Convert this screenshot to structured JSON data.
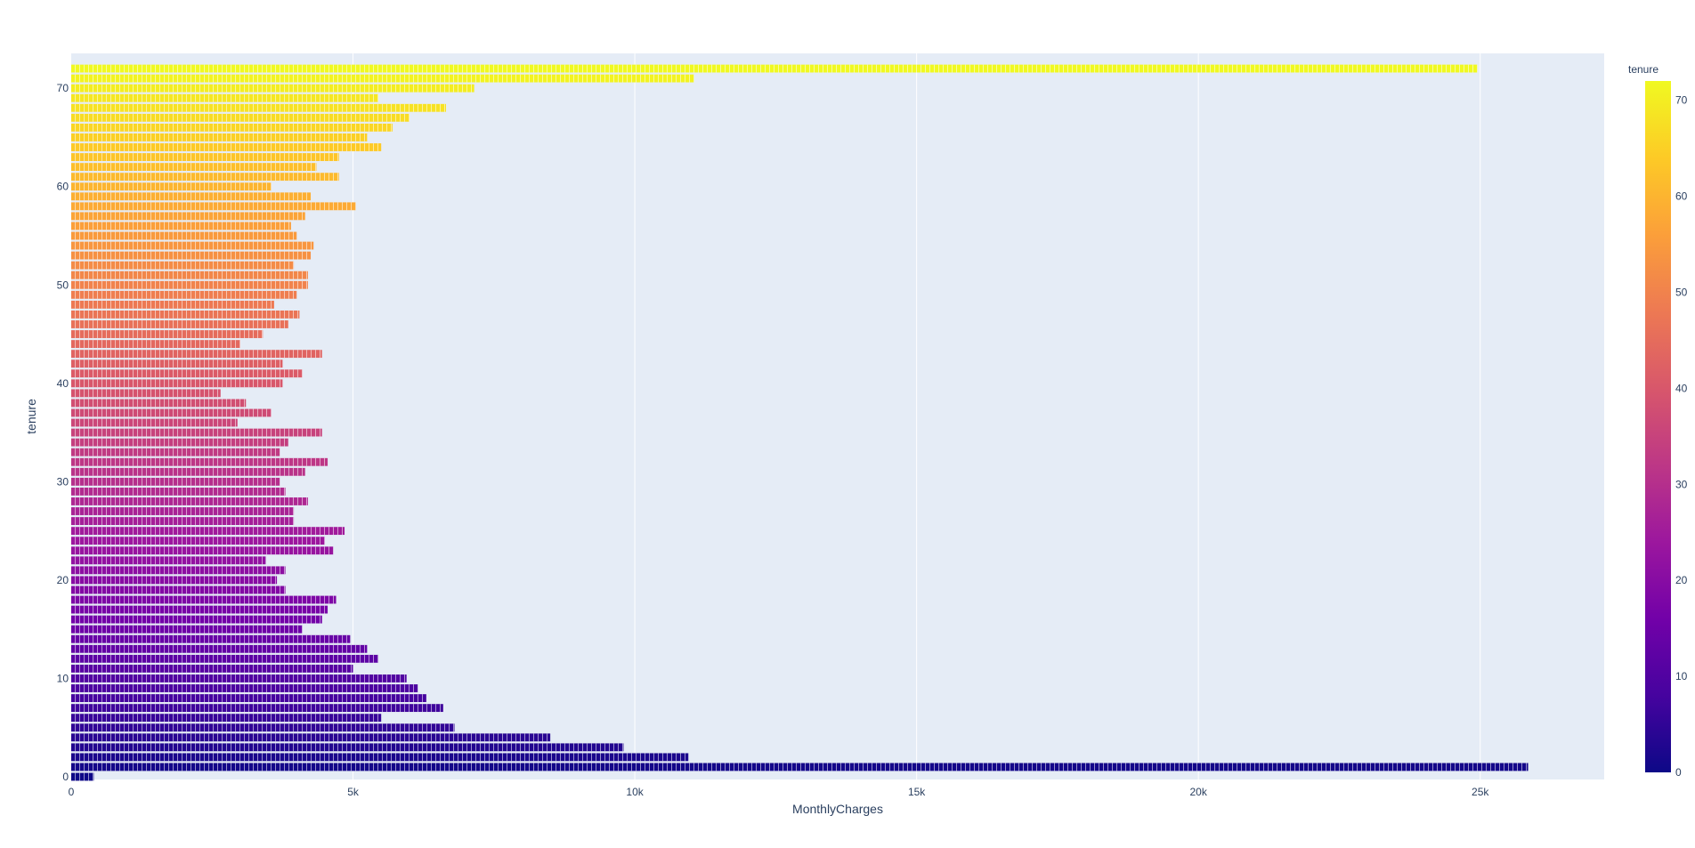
{
  "chart_data": {
    "type": "bar",
    "orientation": "horizontal",
    "barmode": "stacked",
    "xlabel": "MonthlyCharges",
    "ylabel": "tenure",
    "xlim": [
      0,
      27200
    ],
    "ylim": [
      0,
      73
    ],
    "x_ticks": [
      {
        "value": 0,
        "label": "0"
      },
      {
        "value": 5000,
        "label": "5k"
      },
      {
        "value": 10000,
        "label": "10k"
      },
      {
        "value": 15000,
        "label": "15k"
      },
      {
        "value": 20000,
        "label": "20k"
      },
      {
        "value": 25000,
        "label": "25k"
      }
    ],
    "y_ticks": [
      {
        "value": 0,
        "label": "0"
      },
      {
        "value": 10,
        "label": "10"
      },
      {
        "value": 20,
        "label": "20"
      },
      {
        "value": 30,
        "label": "30"
      },
      {
        "value": 40,
        "label": "40"
      },
      {
        "value": 50,
        "label": "50"
      },
      {
        "value": 60,
        "label": "60"
      },
      {
        "value": 70,
        "label": "70"
      }
    ],
    "grid": true,
    "colorbar": {
      "title": "tenure",
      "min": 0,
      "max": 72,
      "ticks": [
        {
          "value": 0,
          "label": "0"
        },
        {
          "value": 10,
          "label": "10"
        },
        {
          "value": 20,
          "label": "20"
        },
        {
          "value": 30,
          "label": "30"
        },
        {
          "value": 40,
          "label": "40"
        },
        {
          "value": 50,
          "label": "50"
        },
        {
          "value": 60,
          "label": "60"
        },
        {
          "value": 70,
          "label": "70"
        }
      ],
      "colorscale": [
        "#0d0887",
        "#46039f",
        "#7201a8",
        "#9c179e",
        "#bd3786",
        "#d8576b",
        "#ed7953",
        "#fb9f3a",
        "#fdca26",
        "#f0f921"
      ]
    },
    "tenure": [
      0,
      1,
      2,
      3,
      4,
      5,
      6,
      7,
      8,
      9,
      10,
      11,
      12,
      13,
      14,
      15,
      16,
      17,
      18,
      19,
      20,
      21,
      22,
      23,
      24,
      25,
      26,
      27,
      28,
      29,
      30,
      31,
      32,
      33,
      34,
      35,
      36,
      37,
      38,
      39,
      40,
      41,
      42,
      43,
      44,
      45,
      46,
      47,
      48,
      49,
      50,
      51,
      52,
      53,
      54,
      55,
      56,
      57,
      58,
      59,
      60,
      61,
      62,
      63,
      64,
      65,
      66,
      67,
      68,
      69,
      70,
      71,
      72
    ],
    "total_monthly_charges": [
      400,
      25850,
      10950,
      9800,
      8500,
      6800,
      5500,
      6600,
      6300,
      6150,
      5950,
      5000,
      5450,
      5250,
      4950,
      4100,
      4450,
      4550,
      4700,
      3800,
      3650,
      3800,
      3450,
      4650,
      4500,
      4850,
      3950,
      3950,
      4200,
      3800,
      3700,
      4150,
      4550,
      3700,
      3850,
      4450,
      2950,
      3550,
      3100,
      2650,
      3750,
      4100,
      3750,
      4450,
      3000,
      3400,
      3850,
      4050,
      3600,
      4000,
      4200,
      4200,
      3950,
      4250,
      4300,
      4000,
      3900,
      4150,
      5050,
      4250,
      3550,
      4750,
      4350,
      4750,
      5500,
      5250,
      5700,
      6000,
      6650,
      5450,
      7150,
      11050,
      24950
    ]
  }
}
